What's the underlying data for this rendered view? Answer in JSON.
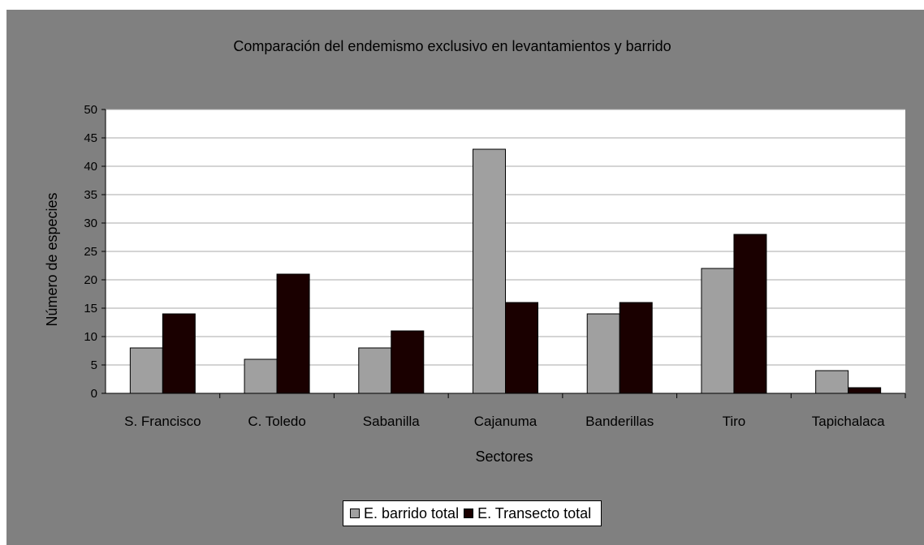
{
  "chart_data": {
    "type": "bar",
    "title": "Comparación del endemismo exclusivo en levantamientos y barrido",
    "xlabel": "Sectores",
    "ylabel": "Número de especies",
    "categories": [
      "S. Francisco",
      "C. Toledo",
      "Sabanilla",
      "Cajanuma",
      "Banderillas",
      "Tiro",
      "Tapichalaca"
    ],
    "series": [
      {
        "name": "E. barrido total",
        "values": [
          8,
          6,
          8,
          43,
          14,
          22,
          4
        ],
        "color": "#a0a0a0"
      },
      {
        "name": "E. Transecto total",
        "values": [
          14,
          21,
          11,
          16,
          16,
          28,
          1
        ],
        "color": "#1a0000"
      }
    ],
    "yticks": [
      "0",
      "5",
      "10",
      "15",
      "20",
      "25",
      "30",
      "35",
      "40",
      "45",
      "50"
    ],
    "ylim": [
      0,
      50
    ],
    "grid": true,
    "legend_position": "bottom"
  }
}
